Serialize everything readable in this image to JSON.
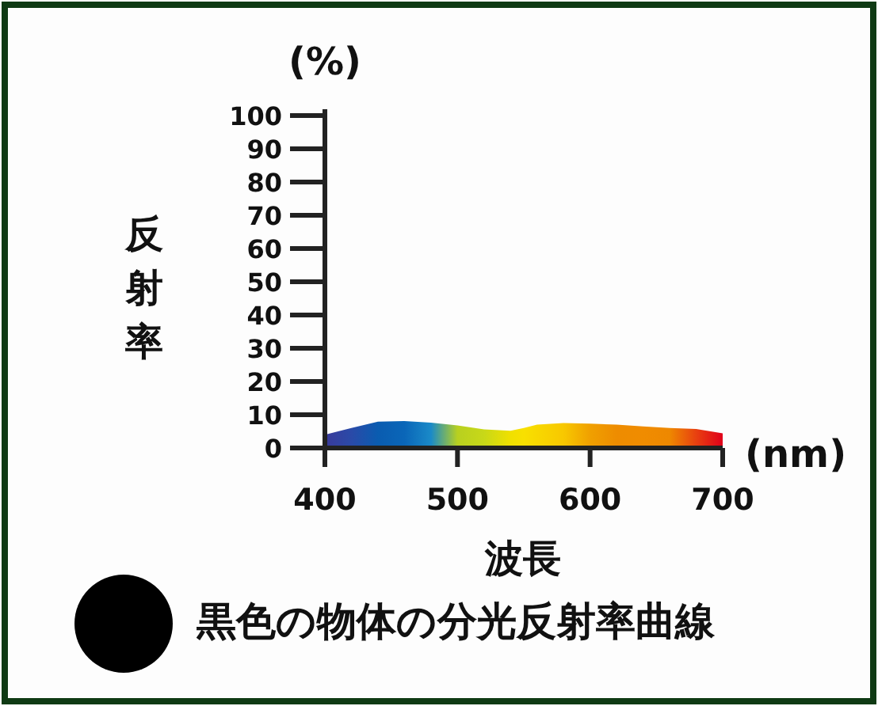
{
  "chart_data": {
    "type": "area",
    "title": "黒色の物体の分光反射率曲線",
    "xlabel": "波長",
    "ylabel": "反射率",
    "annotations": [
      "(%)",
      "(nm)"
    ],
    "x": [
      400,
      420,
      440,
      460,
      480,
      500,
      520,
      540,
      550,
      560,
      580,
      600,
      620,
      640,
      660,
      680,
      700
    ],
    "series": [
      {
        "values": [
          4.0,
          6.0,
          7.9,
          8.1,
          7.6,
          6.8,
          5.6,
          5.2,
          6.0,
          7.0,
          7.5,
          7.3,
          7.0,
          6.5,
          6.0,
          5.7,
          4.4
        ],
        "colors": [
          "#3a3a9a",
          "#2a4aa8",
          "#0a5cb0",
          "#0a66b8",
          "#1a8ac8",
          "#b8d020",
          "#c8d818",
          "#f0e000",
          "#f8e000",
          "#f8d800",
          "#f8c800",
          "#f0a000",
          "#ee8c00",
          "#f08c00",
          "#ee8800",
          "#e84010",
          "#e0001a"
        ]
      }
    ],
    "xlim": [
      400,
      700
    ],
    "xticks": [
      400,
      500,
      600,
      700
    ],
    "ylim": [
      0,
      100
    ],
    "yticks": [
      0,
      10,
      20,
      30,
      40,
      50,
      60,
      70,
      80,
      90,
      100
    ],
    "grid": false
  }
}
